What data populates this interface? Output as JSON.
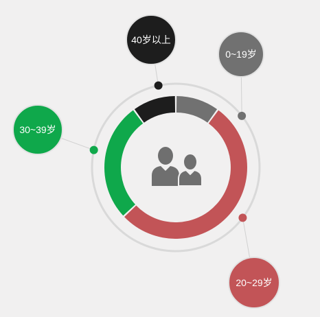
{
  "chart_data": {
    "type": "pie",
    "variant": "donut",
    "title": "",
    "total": 100,
    "slices": [
      {
        "label": "0~19岁",
        "value": 10,
        "color": "#717171"
      },
      {
        "label": "20~29岁",
        "value": 53,
        "color": "#c25457"
      },
      {
        "label": "30~39岁",
        "value": 27,
        "color": "#0fa84b"
      },
      {
        "label": "40岁以上",
        "value": 10,
        "color": "#1d1d1d"
      }
    ],
    "center_icon": "people-icon",
    "ring_color": "#d9d9d9",
    "background": "#f1f0f0"
  }
}
